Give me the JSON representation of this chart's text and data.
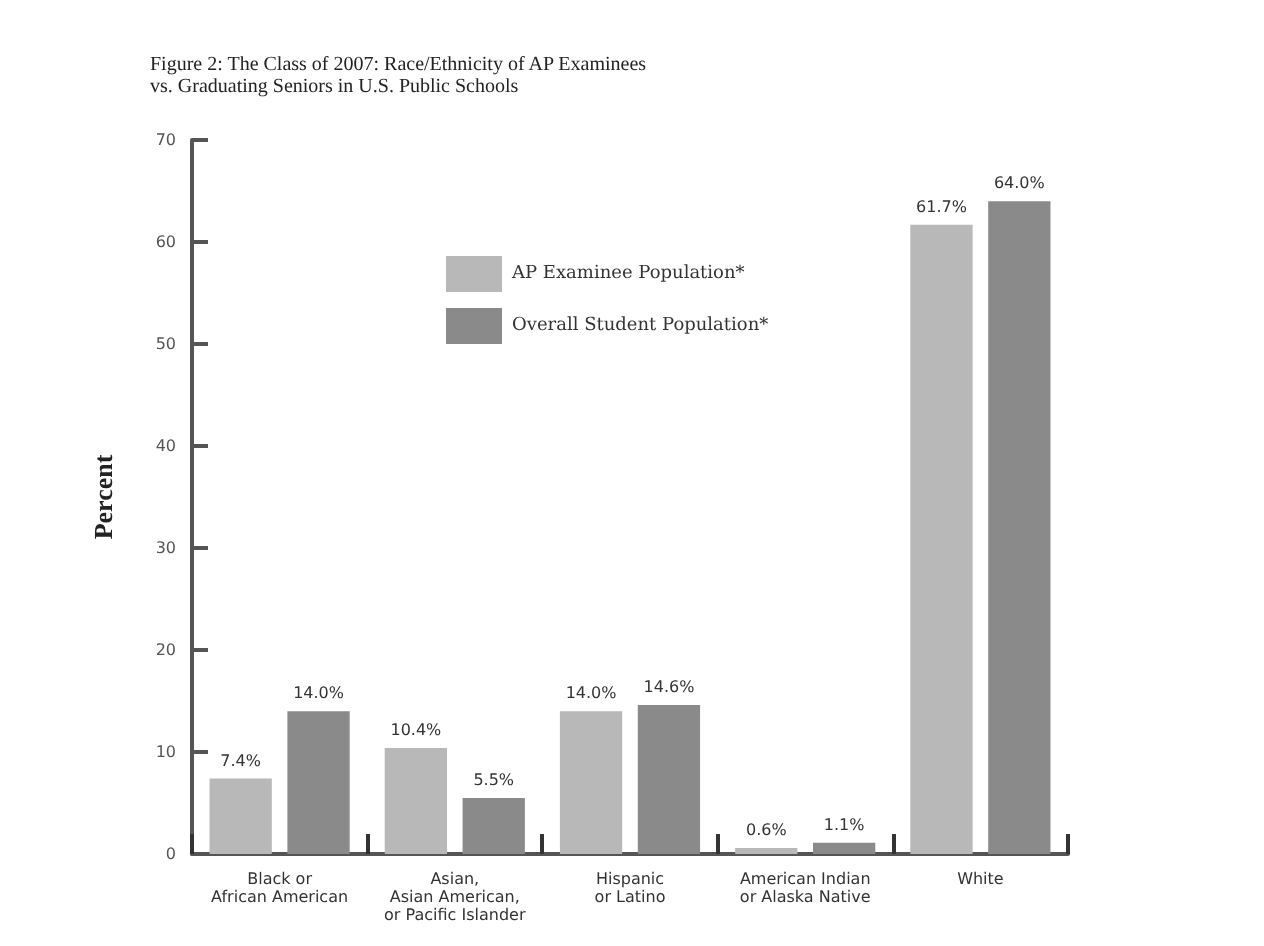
{
  "chart_data": {
    "type": "bar",
    "title": "Figure 2: The Class of 2007: Race/Ethnicity of AP Examinees\nvs. Graduating Seniors in U.S. Public Schools",
    "ylabel": "Percent",
    "categories": [
      "Black or\nAfrican American",
      "Asian,\nAsian American,\nor Pacific Islander",
      "Hispanic\nor Latino",
      "American Indian\nor Alaska Native",
      "White"
    ],
    "series": [
      {
        "name": "AP Examinee Population*",
        "color": "#b8b8b8",
        "values": [
          7.4,
          10.4,
          14.0,
          0.6,
          61.7
        ],
        "value_labels": [
          "7.4%",
          "10.4%",
          "14.0%",
          "0.6%",
          "61.7%"
        ]
      },
      {
        "name": "Overall Student Population*",
        "color": "#8a8a8a",
        "values": [
          14.0,
          5.5,
          14.6,
          1.1,
          64.0
        ],
        "value_labels": [
          "14.0%",
          "5.5%",
          "14.6%",
          "1.1%",
          "64.0%"
        ]
      }
    ],
    "ylim": [
      0,
      70
    ],
    "yticks": [
      0,
      10,
      20,
      30,
      40,
      50,
      60,
      70
    ],
    "grid": false,
    "legend": "top left"
  }
}
